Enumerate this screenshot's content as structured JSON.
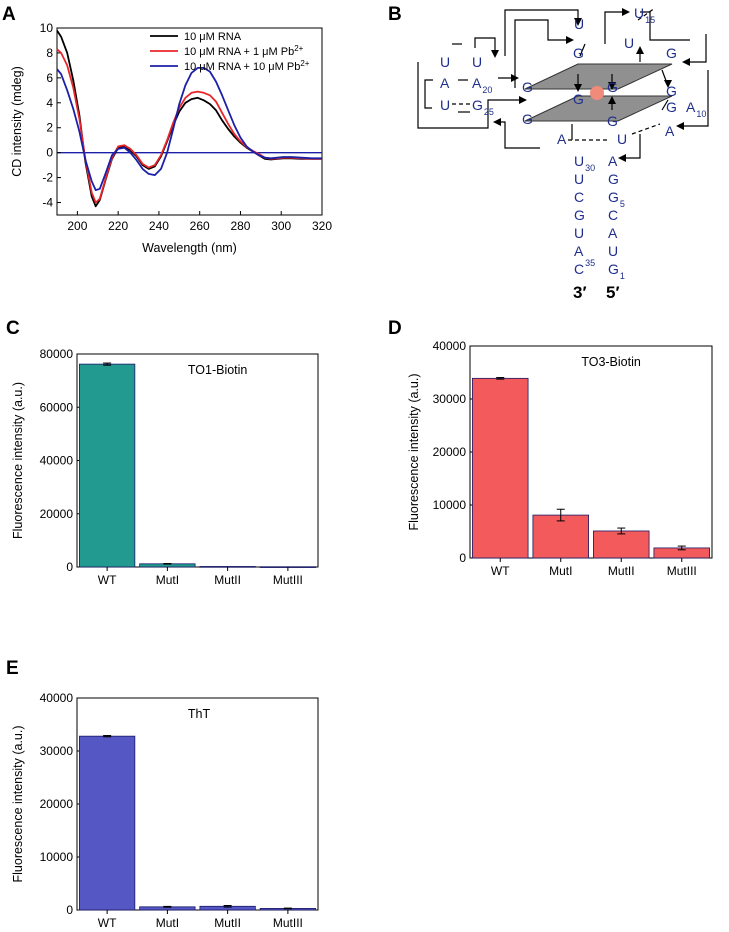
{
  "panel_labels": {
    "a": "A",
    "b": "B",
    "c": "C",
    "d": "D",
    "e": "E"
  },
  "colors": {
    "black_series": "#000000",
    "red_series": "#e8262a",
    "blue_series": "#1c20a8",
    "teal_bar": "#229a90",
    "red_bar": "#f25a5c",
    "blue_bar": "#5557c4",
    "nucleotide": "#1f2e8c",
    "g_red": "#d8231f",
    "g_green": "#2fb59a",
    "ion": "#f08a7a",
    "tetrad": "#909090"
  },
  "chart_data": [
    {
      "id": "A",
      "type": "line",
      "title": "",
      "xlabel": "Wavelength (nm)",
      "ylabel": "CD intensity (mdeg)",
      "xlim": [
        190,
        320
      ],
      "ylim": [
        -5,
        10
      ],
      "xticks": [
        200,
        220,
        240,
        260,
        280,
        300,
        320
      ],
      "yticks": [
        -4,
        -2,
        0,
        2,
        4,
        6,
        8,
        10
      ],
      "legend_position": "top-right",
      "series": [
        {
          "name": "10 μM RNA",
          "name_prefix": "10 μM RNA",
          "name_sup": "",
          "x": [
            190,
            192,
            195,
            198,
            201,
            204,
            207,
            209,
            211,
            214,
            217,
            220,
            223,
            226,
            229,
            232,
            235,
            238,
            241,
            244,
            247,
            250,
            253,
            256,
            259,
            262,
            265,
            268,
            271,
            274,
            277,
            280,
            283,
            286,
            289,
            292,
            295,
            298,
            301,
            305,
            310,
            315,
            320
          ],
          "y": [
            9.8,
            9.3,
            8.0,
            5.8,
            3.0,
            -0.8,
            -3.5,
            -4.3,
            -3.8,
            -2.1,
            -0.5,
            0.4,
            0.5,
            0.2,
            -0.3,
            -1.0,
            -1.3,
            -1.1,
            -0.3,
            0.9,
            2.2,
            3.3,
            4.0,
            4.3,
            4.4,
            4.2,
            3.9,
            3.4,
            2.6,
            1.9,
            1.3,
            0.8,
            0.4,
            0.1,
            -0.2,
            -0.5,
            -0.55,
            -0.5,
            -0.45,
            -0.45,
            -0.5,
            -0.5,
            -0.5
          ]
        },
        {
          "name": "10 μM RNA + 1 μM Pb²⁺",
          "name_prefix": "10 μM RNA + 1 μM Pb",
          "name_sup": "2+",
          "x": [
            190,
            192,
            195,
            198,
            201,
            204,
            207,
            209,
            211,
            214,
            217,
            220,
            223,
            226,
            229,
            232,
            235,
            238,
            241,
            244,
            247,
            250,
            253,
            256,
            259,
            262,
            265,
            268,
            271,
            274,
            277,
            280,
            283,
            286,
            289,
            292,
            295,
            298,
            301,
            305,
            310,
            315,
            320
          ],
          "y": [
            8.3,
            8.0,
            7.0,
            5.2,
            2.7,
            -0.6,
            -3.2,
            -4.0,
            -3.7,
            -2.0,
            -0.4,
            0.5,
            0.6,
            0.3,
            -0.2,
            -0.9,
            -1.2,
            -1.0,
            -0.2,
            1.0,
            2.4,
            3.6,
            4.4,
            4.8,
            4.9,
            4.8,
            4.6,
            4.1,
            3.2,
            2.3,
            1.5,
            0.9,
            0.45,
            0.15,
            -0.1,
            -0.4,
            -0.5,
            -0.45,
            -0.4,
            -0.4,
            -0.45,
            -0.5,
            -0.5
          ]
        },
        {
          "name": "10 μM RNA + 10 μM Pb²⁺",
          "name_prefix": "10 μM RNA + 10 μM Pb",
          "name_sup": "2+",
          "x": [
            190,
            192,
            195,
            198,
            201,
            204,
            207,
            209,
            211,
            214,
            217,
            220,
            223,
            226,
            229,
            232,
            235,
            238,
            241,
            244,
            247,
            250,
            253,
            256,
            259,
            262,
            265,
            268,
            271,
            274,
            277,
            280,
            283,
            286,
            289,
            292,
            295,
            298,
            301,
            305,
            310,
            315,
            320
          ],
          "y": [
            6.7,
            6.3,
            5.0,
            3.5,
            1.7,
            -0.6,
            -2.3,
            -3.0,
            -2.9,
            -1.6,
            -0.2,
            0.3,
            0.4,
            0.0,
            -0.6,
            -1.3,
            -1.7,
            -1.8,
            -1.3,
            0.0,
            1.9,
            3.9,
            5.4,
            6.4,
            6.8,
            6.8,
            6.5,
            5.7,
            4.6,
            3.4,
            2.2,
            1.2,
            0.5,
            0.1,
            -0.2,
            -0.4,
            -0.45,
            -0.4,
            -0.35,
            -0.35,
            -0.4,
            -0.45,
            -0.45
          ]
        }
      ]
    },
    {
      "id": "C",
      "type": "bar",
      "title": "TO1-Biotin",
      "xlabel": "",
      "ylabel": "Fluorescence intensity (a.u.)",
      "categories": [
        "WT",
        "MutI",
        "MutII",
        "MutIII"
      ],
      "values": [
        76200,
        1200,
        200,
        100
      ],
      "errors": [
        400,
        100,
        0,
        0
      ],
      "ylim": [
        0,
        80000
      ],
      "yticks": [
        0,
        20000,
        40000,
        60000,
        80000
      ]
    },
    {
      "id": "D",
      "type": "bar",
      "title": "TO3-Biotin",
      "xlabel": "",
      "ylabel": "Fluorescence intensity (a.u.)",
      "categories": [
        "WT",
        "MutI",
        "MutII",
        "MutIII"
      ],
      "values": [
        33900,
        8100,
        5100,
        1900
      ],
      "errors": [
        150,
        1100,
        550,
        350
      ],
      "ylim": [
        0,
        40000
      ],
      "yticks": [
        0,
        10000,
        20000,
        30000,
        40000
      ]
    },
    {
      "id": "E",
      "type": "bar",
      "title": "ThT",
      "xlabel": "",
      "ylabel": "Fluorescence intensity (a.u.)",
      "categories": [
        "WT",
        "MutI",
        "MutII",
        "MutIII"
      ],
      "values": [
        32800,
        600,
        700,
        300
      ],
      "errors": [
        120,
        80,
        150,
        60
      ],
      "ylim": [
        0,
        40000
      ],
      "yticks": [
        0,
        10000,
        20000,
        30000,
        40000
      ]
    }
  ],
  "diagram_b": {
    "nucleotides": [
      {
        "id": "u_top",
        "base": "U",
        "num": ""
      },
      {
        "id": "u15",
        "base": "U",
        "num": "15"
      },
      {
        "id": "u_r2",
        "base": "U",
        "num": ""
      },
      {
        "id": "g_t1",
        "base": "G",
        "num": ""
      },
      {
        "id": "g_t2",
        "base": "G",
        "num": ""
      },
      {
        "id": "u_l1",
        "base": "U",
        "num": ""
      },
      {
        "id": "u_l2",
        "base": "U",
        "num": ""
      },
      {
        "id": "a_l",
        "base": "A",
        "num": ""
      },
      {
        "id": "a20",
        "base": "A",
        "num": "20"
      },
      {
        "id": "u_l3",
        "base": "U",
        "num": ""
      },
      {
        "id": "g25",
        "base": "G",
        "num": "25"
      },
      {
        "id": "g_m1",
        "base": "G",
        "num": ""
      },
      {
        "id": "g_m2",
        "base": "G",
        "num": ""
      },
      {
        "id": "g_red",
        "base": "G",
        "num": ""
      },
      {
        "id": "g_m3",
        "base": "G",
        "num": ""
      },
      {
        "id": "g_m4",
        "base": "G",
        "num": ""
      },
      {
        "id": "g_green",
        "base": "G",
        "num": ""
      },
      {
        "id": "g_m5",
        "base": "G",
        "num": ""
      },
      {
        "id": "a10",
        "base": "A",
        "num": "10"
      },
      {
        "id": "a_r",
        "base": "A",
        "num": ""
      },
      {
        "id": "a_c",
        "base": "A",
        "num": ""
      },
      {
        "id": "u_c",
        "base": "U",
        "num": ""
      },
      {
        "id": "u30",
        "base": "U",
        "num": "30"
      },
      {
        "id": "a_s1",
        "base": "A",
        "num": ""
      },
      {
        "id": "u_s2",
        "base": "U",
        "num": ""
      },
      {
        "id": "g_s2",
        "base": "G",
        "num": ""
      },
      {
        "id": "c_s3",
        "base": "C",
        "num": ""
      },
      {
        "id": "g5",
        "base": "G",
        "num": "5"
      },
      {
        "id": "g_s4",
        "base": "G",
        "num": ""
      },
      {
        "id": "c_s4",
        "base": "C",
        "num": ""
      },
      {
        "id": "u_s5",
        "base": "U",
        "num": ""
      },
      {
        "id": "a_s5",
        "base": "A",
        "num": ""
      },
      {
        "id": "a_s6",
        "base": "A",
        "num": ""
      },
      {
        "id": "u_s6",
        "base": "U",
        "num": ""
      },
      {
        "id": "c35",
        "base": "C",
        "num": "35"
      },
      {
        "id": "g1",
        "base": "G",
        "num": "1"
      }
    ],
    "end_3": "3′",
    "end_5": "5′"
  }
}
